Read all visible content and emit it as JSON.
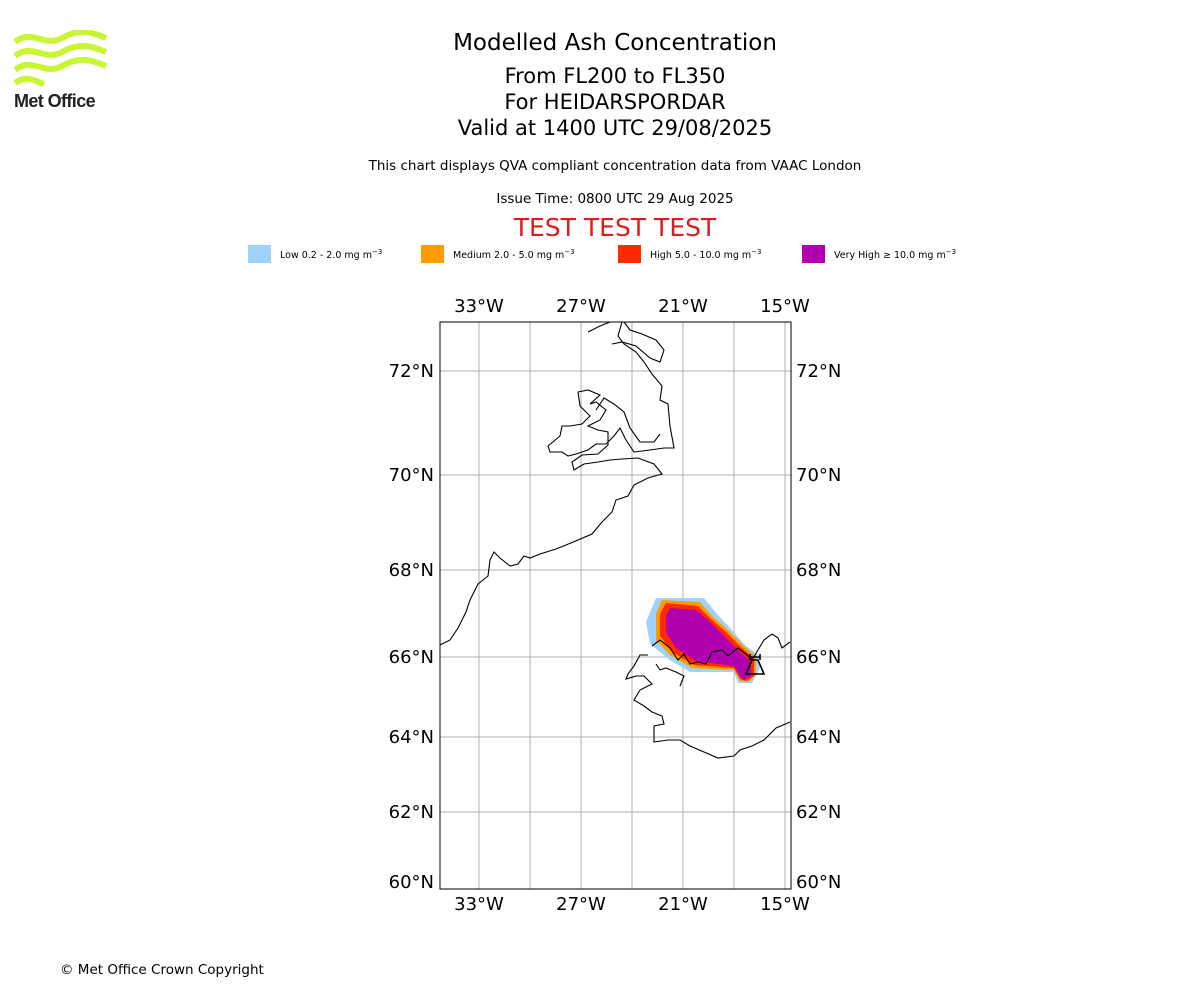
{
  "header": {
    "logo_text": "Met Office",
    "logo_color": "#c8f534",
    "title": "Modelled Ash Concentration",
    "level_range": "From FL200 to FL350",
    "volcano_line": "For HEIDARSPORDAR",
    "valid_time": "Valid at 1400 UTC 29/08/2025",
    "compliance_note": "This chart displays QVA compliant concentration data from VAAC London",
    "issue_time": "Issue Time: 0800 UTC 29 Aug 2025",
    "test_banner": "TEST TEST TEST"
  },
  "legend": [
    {
      "label": "Low 0.2 - 2.0 mg m",
      "exponent": "−3",
      "color": "#a0d2fb"
    },
    {
      "label": "Medium 2.0 - 5.0 mg m",
      "exponent": "−3",
      "color": "#ff9a00"
    },
    {
      "label": "High 5.0 - 10.0 mg m",
      "exponent": "−3",
      "color": "#ff2a00"
    },
    {
      "label": "Very High  ≥  10.0 mg m",
      "exponent": "−3",
      "color": "#b000b0"
    }
  ],
  "map": {
    "lon_ticks": [
      "33°W",
      "27°W",
      "21°W",
      "15°W"
    ],
    "lat_ticks": [
      "72°N",
      "70°N",
      "68°N",
      "66°N",
      "64°N",
      "62°N",
      "60°N"
    ],
    "grid": true
  },
  "footer": {
    "copyright": "© Met Office Crown Copyright"
  }
}
